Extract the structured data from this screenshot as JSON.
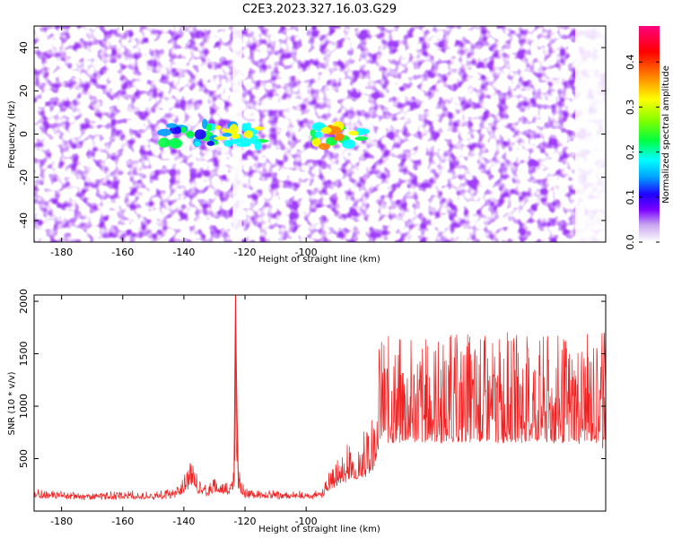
{
  "chart_data": [
    {
      "type": "heatmap",
      "title": "C2E3.2023.327.16.03.G29",
      "xlabel": "Height of straight line (km)",
      "ylabel": "Frequency (Hz)",
      "xlim": [
        -189,
        -2
      ],
      "ylim": [
        -50,
        50
      ],
      "x_ticks": [
        -180,
        -160,
        -140,
        -120,
        -100
      ],
      "y_ticks": [
        -40,
        -20,
        0,
        20,
        40
      ],
      "colorbar": {
        "label": "Normalized spectral amplitude",
        "range": [
          0,
          0.48
        ],
        "ticks": [
          0.0,
          0.1,
          0.2,
          0.3,
          0.4
        ],
        "colormap": [
          "#ffffff",
          "#c9a6f0",
          "#7b00ff",
          "#2000ff",
          "#00a0ff",
          "#00ffff",
          "#00ff40",
          "#80ff00",
          "#ffff00",
          "#ff8000",
          "#ff0000",
          "#ff0080"
        ]
      },
      "hotspots": [
        {
          "x": -138,
          "y": 0,
          "amplitude": 0.25
        },
        {
          "x": -123,
          "y": -1,
          "amplitude": 0.3
        },
        {
          "x": -89,
          "y": -1,
          "amplitude": 0.42
        }
      ],
      "empty_bands": [
        {
          "x_from": -124,
          "x_to": -121
        },
        {
          "x_from": -12,
          "x_to": -2
        }
      ]
    },
    {
      "type": "line",
      "title": "",
      "xlabel": "Height of straight line (km)",
      "ylabel": "SNR (10 * v/v)",
      "xlim": [
        -189,
        -2
      ],
      "ylim": [
        0,
        2060
      ],
      "x_ticks": [
        -180,
        -160,
        -140,
        -120,
        -100
      ],
      "y_ticks": [
        500,
        1000,
        1500,
        2000
      ],
      "series_color": "#ee2222",
      "series": [
        {
          "x": [
            -189,
            -180,
            -170,
            -160,
            -150,
            -145,
            -141,
            -139,
            -137,
            -135,
            -132,
            -130,
            -127,
            -125,
            -123.5,
            -123,
            -122.7,
            -122.3,
            -121.5,
            -120,
            -115,
            -110,
            -105,
            -100,
            -95,
            -93,
            -90,
            -87,
            -85,
            -83,
            -80,
            -78,
            -76
          ],
          "y": [
            200,
            180,
            170,
            175,
            180,
            190,
            260,
            450,
            520,
            300,
            260,
            330,
            300,
            280,
            400,
            2060,
            1300,
            500,
            300,
            210,
            190,
            180,
            180,
            180,
            200,
            380,
            520,
            600,
            700,
            650,
            800,
            900,
            1700
          ]
        }
      ]
    }
  ]
}
